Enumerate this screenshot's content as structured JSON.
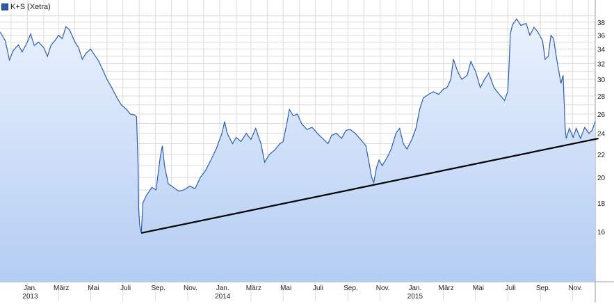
{
  "legend": {
    "label": "K+S (Xetra)"
  },
  "colors": {
    "line": "#2a5db0",
    "area_top": "#eaf1fd",
    "area_bottom": "#b3cdf3",
    "grid": "#dcdcdc",
    "trendline": "#000000"
  },
  "chart_data": {
    "type": "area",
    "title": "",
    "xlabel": "",
    "ylabel": "",
    "grid": true,
    "legend_position": "top-left",
    "y_axis_side": "right",
    "ylim": [
      13.0,
      40.0
    ],
    "y_scale": "log",
    "y_ticks": [
      16,
      18,
      20,
      22,
      24,
      26,
      28,
      30,
      32,
      34,
      36,
      38
    ],
    "x_range": [
      "2012-11-10",
      "2015-12-14"
    ],
    "x_ticks": [
      {
        "date": "2013-01-01",
        "label": "Jan.",
        "year": "2013"
      },
      {
        "date": "2013-03-01",
        "label": "März",
        "year": ""
      },
      {
        "date": "2013-05-01",
        "label": "Mai",
        "year": ""
      },
      {
        "date": "2013-07-01",
        "label": "Juli",
        "year": ""
      },
      {
        "date": "2013-09-01",
        "label": "Sep.",
        "year": ""
      },
      {
        "date": "2013-11-01",
        "label": "Nov.",
        "year": ""
      },
      {
        "date": "2014-01-01",
        "label": "Jan.",
        "year": "2014"
      },
      {
        "date": "2014-03-01",
        "label": "März",
        "year": ""
      },
      {
        "date": "2014-05-01",
        "label": "Mai",
        "year": ""
      },
      {
        "date": "2014-07-01",
        "label": "Juli",
        "year": ""
      },
      {
        "date": "2014-09-01",
        "label": "Sep.",
        "year": ""
      },
      {
        "date": "2014-11-01",
        "label": "Nov.",
        "year": ""
      },
      {
        "date": "2015-01-01",
        "label": "Jan.",
        "year": "2015"
      },
      {
        "date": "2015-03-01",
        "label": "März",
        "year": ""
      },
      {
        "date": "2015-05-01",
        "label": "Mai",
        "year": ""
      },
      {
        "date": "2015-07-01",
        "label": "Juli",
        "year": ""
      },
      {
        "date": "2015-09-01",
        "label": "Sep.",
        "year": ""
      },
      {
        "date": "2015-11-01",
        "label": "Nov.",
        "year": ""
      }
    ],
    "series": [
      {
        "name": "K+S (Xetra)",
        "points": [
          [
            "2012-11-10",
            36.5
          ],
          [
            "2012-11-20",
            35.2
          ],
          [
            "2012-11-28",
            32.5
          ],
          [
            "2012-12-05",
            33.8
          ],
          [
            "2012-12-15",
            34.6
          ],
          [
            "2012-12-22",
            33.6
          ],
          [
            "2013-01-01",
            35.0
          ],
          [
            "2013-01-07",
            36.2
          ],
          [
            "2013-01-14",
            34.5
          ],
          [
            "2013-01-22",
            35.0
          ],
          [
            "2013-02-01",
            34.2
          ],
          [
            "2013-02-08",
            33.0
          ],
          [
            "2013-02-15",
            34.6
          ],
          [
            "2013-02-22",
            35.2
          ],
          [
            "2013-03-01",
            36.0
          ],
          [
            "2013-03-08",
            35.5
          ],
          [
            "2013-03-15",
            37.3
          ],
          [
            "2013-03-22",
            36.8
          ],
          [
            "2013-04-01",
            35.0
          ],
          [
            "2013-04-08",
            34.2
          ],
          [
            "2013-04-15",
            32.6
          ],
          [
            "2013-04-22",
            33.4
          ],
          [
            "2013-05-01",
            34.0
          ],
          [
            "2013-05-08",
            33.2
          ],
          [
            "2013-05-15",
            32.5
          ],
          [
            "2013-05-22",
            31.5
          ],
          [
            "2013-06-01",
            30.0
          ],
          [
            "2013-06-10",
            29.0
          ],
          [
            "2013-06-20",
            27.8
          ],
          [
            "2013-06-28",
            27.0
          ],
          [
            "2013-07-08",
            26.5
          ],
          [
            "2013-07-15",
            26.0
          ],
          [
            "2013-07-23",
            25.9
          ],
          [
            "2013-07-27",
            25.7
          ],
          [
            "2013-07-30",
            21.0
          ],
          [
            "2013-07-31",
            17.6
          ],
          [
            "2013-08-02",
            16.4
          ],
          [
            "2013-08-05",
            15.9
          ],
          [
            "2013-08-08",
            18.0
          ],
          [
            "2013-08-15",
            18.6
          ],
          [
            "2013-08-25",
            19.2
          ],
          [
            "2013-09-02",
            19.0
          ],
          [
            "2013-09-10",
            21.8
          ],
          [
            "2013-09-14",
            22.8
          ],
          [
            "2013-09-18",
            21.0
          ],
          [
            "2013-09-25",
            19.5
          ],
          [
            "2013-10-05",
            19.2
          ],
          [
            "2013-10-15",
            18.9
          ],
          [
            "2013-10-25",
            19.0
          ],
          [
            "2013-11-05",
            19.3
          ],
          [
            "2013-11-15",
            19.1
          ],
          [
            "2013-11-25",
            20.0
          ],
          [
            "2013-12-05",
            20.6
          ],
          [
            "2013-12-15",
            21.5
          ],
          [
            "2013-12-25",
            22.5
          ],
          [
            "2014-01-05",
            24.0
          ],
          [
            "2014-01-10",
            25.2
          ],
          [
            "2014-01-15",
            24.0
          ],
          [
            "2014-01-25",
            23.0
          ],
          [
            "2014-02-01",
            23.6
          ],
          [
            "2014-02-10",
            23.2
          ],
          [
            "2014-02-20",
            24.0
          ],
          [
            "2014-03-01",
            23.4
          ],
          [
            "2014-03-10",
            24.5
          ],
          [
            "2014-03-20",
            23.0
          ],
          [
            "2014-03-27",
            21.3
          ],
          [
            "2014-04-05",
            22.0
          ],
          [
            "2014-04-15",
            22.4
          ],
          [
            "2014-04-25",
            23.0
          ],
          [
            "2014-05-01",
            23.2
          ],
          [
            "2014-05-08",
            25.0
          ],
          [
            "2014-05-13",
            26.5
          ],
          [
            "2014-05-20",
            25.8
          ],
          [
            "2014-05-28",
            26.0
          ],
          [
            "2014-06-05",
            25.0
          ],
          [
            "2014-06-15",
            24.4
          ],
          [
            "2014-06-25",
            24.6
          ],
          [
            "2014-07-05",
            24.0
          ],
          [
            "2014-07-15",
            23.5
          ],
          [
            "2014-07-25",
            23.0
          ],
          [
            "2014-08-01",
            23.8
          ],
          [
            "2014-08-10",
            24.0
          ],
          [
            "2014-08-20",
            23.5
          ],
          [
            "2014-08-28",
            24.3
          ],
          [
            "2014-09-05",
            24.4
          ],
          [
            "2014-09-15",
            24.0
          ],
          [
            "2014-09-25",
            23.4
          ],
          [
            "2014-10-05",
            22.8
          ],
          [
            "2014-10-10",
            21.5
          ],
          [
            "2014-10-16",
            20.0
          ],
          [
            "2014-10-20",
            19.6
          ],
          [
            "2014-10-25",
            20.8
          ],
          [
            "2014-10-30",
            21.5
          ],
          [
            "2014-11-05",
            21.0
          ],
          [
            "2014-11-15",
            21.8
          ],
          [
            "2014-11-22",
            22.5
          ],
          [
            "2014-12-01",
            24.0
          ],
          [
            "2014-12-08",
            24.5
          ],
          [
            "2014-12-15",
            23.0
          ],
          [
            "2014-12-22",
            22.5
          ],
          [
            "2015-01-01",
            23.5
          ],
          [
            "2015-01-08",
            24.5
          ],
          [
            "2015-01-15",
            26.5
          ],
          [
            "2015-01-22",
            27.8
          ],
          [
            "2015-02-01",
            28.2
          ],
          [
            "2015-02-10",
            28.5
          ],
          [
            "2015-02-20",
            28.2
          ],
          [
            "2015-03-01",
            28.8
          ],
          [
            "2015-03-08",
            29.0
          ],
          [
            "2015-03-15",
            30.0
          ],
          [
            "2015-03-20",
            32.6
          ],
          [
            "2015-03-28",
            31.0
          ],
          [
            "2015-04-05",
            30.0
          ],
          [
            "2015-04-15",
            30.5
          ],
          [
            "2015-04-22",
            32.3
          ],
          [
            "2015-05-01",
            31.0
          ],
          [
            "2015-05-10",
            29.0
          ],
          [
            "2015-05-18",
            30.0
          ],
          [
            "2015-05-26",
            30.8
          ],
          [
            "2015-06-05",
            29.0
          ],
          [
            "2015-06-15",
            28.2
          ],
          [
            "2015-06-25",
            27.5
          ],
          [
            "2015-07-01",
            28.5
          ],
          [
            "2015-07-03",
            31.0
          ],
          [
            "2015-07-06",
            36.2
          ],
          [
            "2015-07-10",
            37.6
          ],
          [
            "2015-07-18",
            38.5
          ],
          [
            "2015-07-26",
            37.5
          ],
          [
            "2015-08-05",
            37.8
          ],
          [
            "2015-08-12",
            36.0
          ],
          [
            "2015-08-20",
            37.2
          ],
          [
            "2015-08-27",
            36.5
          ],
          [
            "2015-09-05",
            35.2
          ],
          [
            "2015-09-10",
            32.6
          ],
          [
            "2015-09-16",
            33.0
          ],
          [
            "2015-09-21",
            36.0
          ],
          [
            "2015-09-26",
            35.5
          ],
          [
            "2015-10-01",
            33.0
          ],
          [
            "2015-10-06",
            31.0
          ],
          [
            "2015-10-10",
            29.5
          ],
          [
            "2015-10-14",
            30.5
          ],
          [
            "2015-10-18",
            24.5
          ],
          [
            "2015-10-20",
            23.5
          ],
          [
            "2015-10-26",
            24.5
          ],
          [
            "2015-11-02",
            23.6
          ],
          [
            "2015-11-08",
            24.5
          ],
          [
            "2015-11-16",
            23.5
          ],
          [
            "2015-11-24",
            24.6
          ],
          [
            "2015-12-02",
            24.0
          ],
          [
            "2015-12-08",
            24.3
          ],
          [
            "2015-12-14",
            25.2
          ]
        ]
      }
    ],
    "trendline": {
      "start": [
        "2013-08-05",
        15.9
      ],
      "end": [
        "2015-12-20",
        23.5
      ]
    }
  }
}
